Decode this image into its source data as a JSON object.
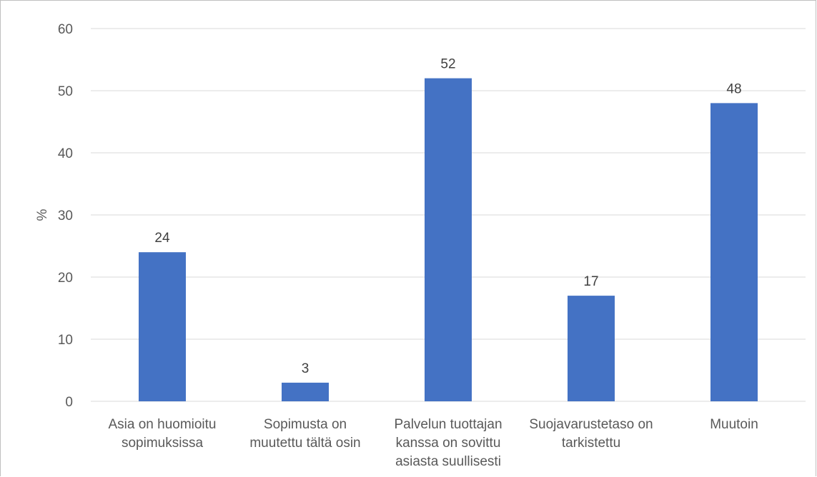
{
  "chart_data": {
    "type": "bar",
    "title": "",
    "xlabel": "",
    "ylabel": "%",
    "ylim": [
      0,
      60
    ],
    "yticks": [
      0,
      10,
      20,
      30,
      40,
      50,
      60
    ],
    "categories": [
      [
        "Asia on huomioitu",
        "sopimuksissa"
      ],
      [
        "Sopimusta on",
        "muutettu tältä osin"
      ],
      [
        "Palvelun tuottajan",
        "kanssa on sovittu",
        "asiasta suullisesti"
      ],
      [
        "Suojavarustetaso on",
        "tarkistettu"
      ],
      [
        "Muutoin"
      ]
    ],
    "values": [
      24,
      3,
      52,
      17,
      48
    ],
    "data_labels": [
      "24",
      "3",
      "52",
      "17",
      "48"
    ],
    "bar_color": "#4472C4",
    "gridline_color": "#d9d9d9",
    "grid": true,
    "legend": "none"
  }
}
